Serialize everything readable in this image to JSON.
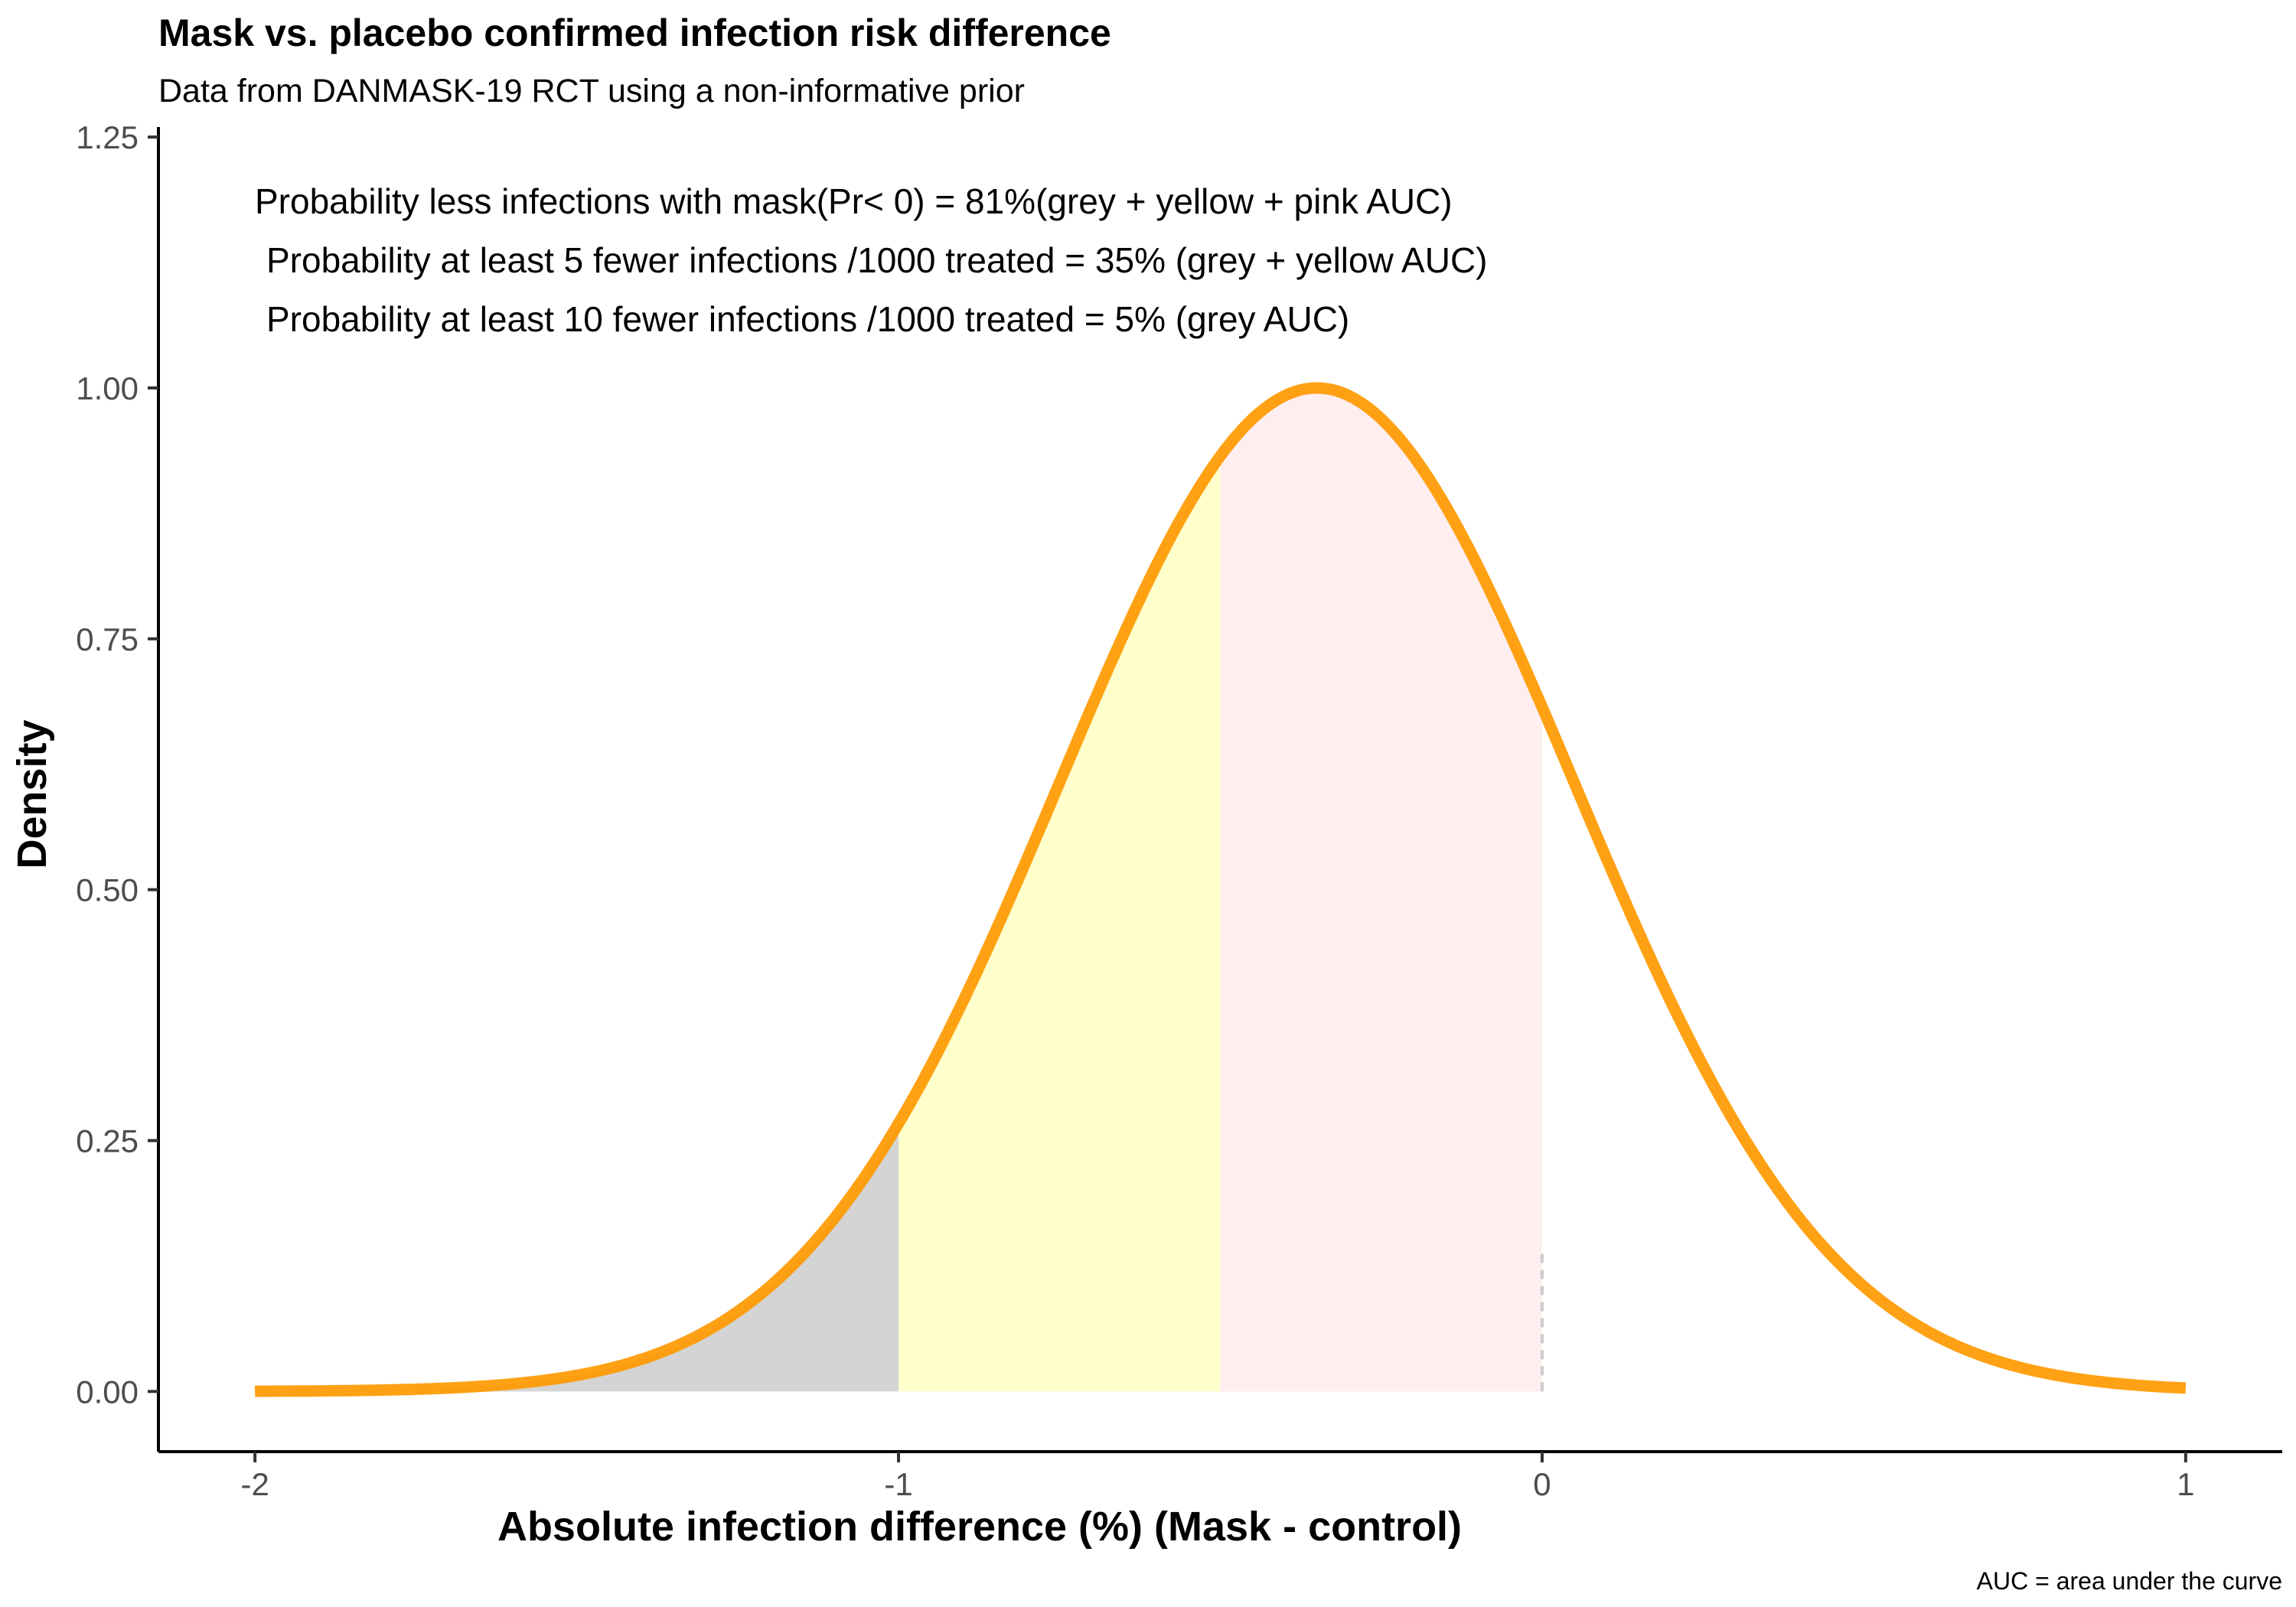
{
  "chart_data": {
    "type": "area",
    "title": "Mask  vs. placebo confirmed infection risk difference",
    "subtitle": "Data from DANMASK-19 RCT using a non-informative prior",
    "xlabel": "Absolute infection difference (%) (Mask - control)",
    "ylabel": "Density",
    "caption": "AUC = area under the curve",
    "xlim": [
      -2.15,
      1.15
    ],
    "ylim": [
      -0.06,
      1.26
    ],
    "x_ticks": [
      -2,
      -1,
      0,
      1
    ],
    "x_tick_labels": [
      "-2",
      "-1",
      "0",
      "1"
    ],
    "y_ticks": [
      0,
      0.25,
      0.5,
      0.75,
      1.0,
      1.25
    ],
    "y_tick_labels": [
      "0.00",
      "0.25",
      "0.50",
      "0.75",
      "1.00",
      "1.25"
    ],
    "grid": false,
    "distribution": {
      "family": "normal",
      "mean": -0.35,
      "sd": 0.4,
      "x_range": [
        -2,
        1
      ],
      "scaled_peak": 1.0
    },
    "shaded_regions": [
      {
        "x_from": -2,
        "x_to": -1,
        "color": "#d4d4d4"
      },
      {
        "x_from": -1,
        "x_to": -0.5,
        "color": "#ffffcc"
      },
      {
        "x_from": -0.5,
        "x_to": 0,
        "color": "#ffeef0"
      }
    ],
    "reference_line": {
      "x": 0,
      "y_to": 0.14,
      "style": "dashed",
      "color": "#cccccc"
    },
    "annotations": [
      "Probability less infections with mask(Pr< 0) = 81%(grey + yellow + pink AUC)",
      "Probability at least 5 fewer infections /1000 treated = 35% (grey + yellow AUC)",
      "Probability at least 10 fewer infections /1000 treated = 5% (grey AUC)"
    ],
    "curve_color": "#ff9900"
  }
}
